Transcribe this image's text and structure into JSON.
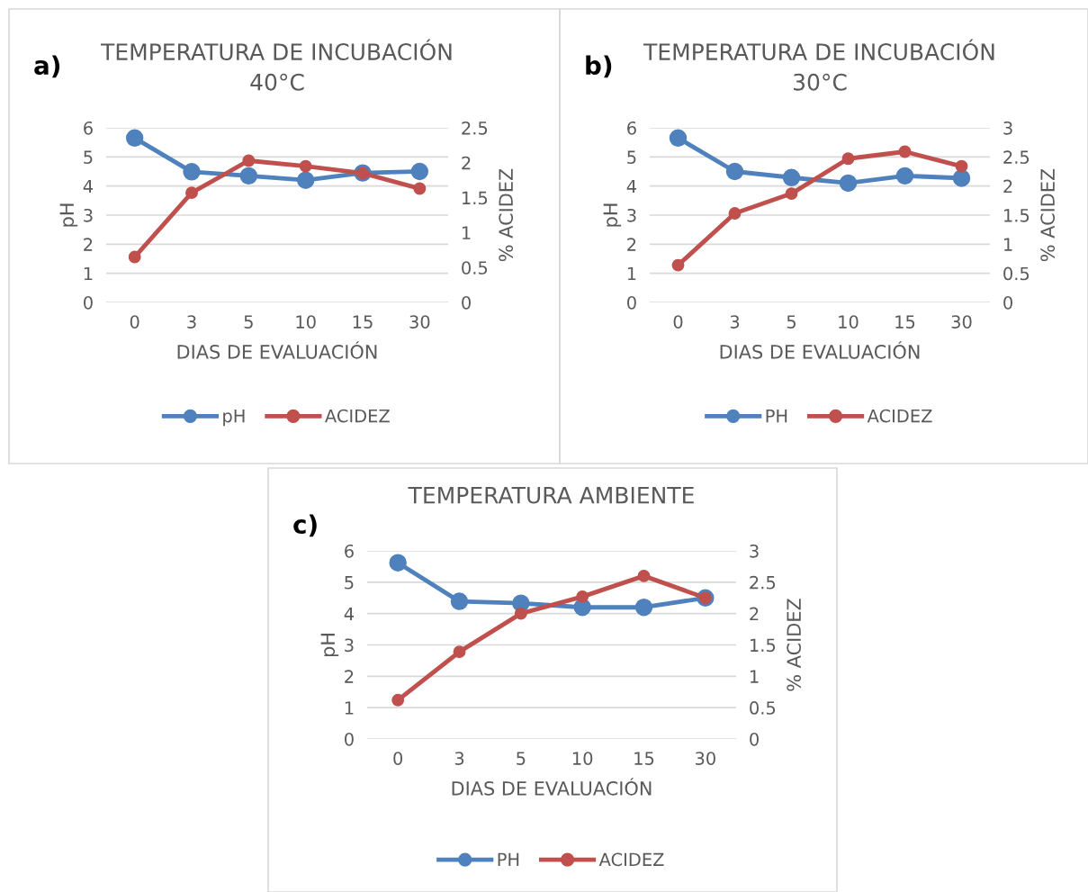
{
  "chart_data": [
    {
      "type": "line",
      "title": "TEMPERATURA DE INCUBACIÓN\n40°C",
      "annotations": [
        "a)"
      ],
      "xlabel": "DIAS DE EVALUACIÓN",
      "ylabel": "pH",
      "y2label": "% ACIDEZ",
      "categories": [
        "0",
        "3",
        "5",
        "10",
        "15",
        "30"
      ],
      "ylim": [
        0,
        6
      ],
      "yticks": [
        0,
        1,
        2,
        3,
        4,
        5,
        6
      ],
      "y2lim": [
        0,
        2.5
      ],
      "y2ticks": [
        0,
        0.5,
        1,
        1.5,
        2,
        2.5
      ],
      "grid": "y",
      "legend": "bottom",
      "marker": "circle",
      "series": [
        {
          "name": "pH",
          "color": "#4f81bd",
          "values": [
            5.65,
            4.49,
            4.35,
            4.2,
            4.45,
            4.5
          ]
        },
        {
          "name": "ACIDEZ",
          "color": "#c0504d",
          "axis": "y2",
          "values": [
            0.65,
            1.57,
            2.03,
            1.95,
            1.85,
            1.63
          ]
        }
      ]
    },
    {
      "type": "line",
      "title": "TEMPERATURA DE INCUBACIÓN\n30°C",
      "annotations": [
        "b)"
      ],
      "xlabel": "DIAS DE EVALUACIÓN",
      "ylabel": "pH",
      "y2label": "% ACIDEZ",
      "categories": [
        "0",
        "3",
        "5",
        "10",
        "15",
        "30"
      ],
      "ylim": [
        0,
        6
      ],
      "yticks": [
        0,
        1,
        2,
        3,
        4,
        5,
        6
      ],
      "y2lim": [
        0,
        3
      ],
      "y2ticks": [
        0,
        0.5,
        1,
        1.5,
        2,
        2.5,
        3
      ],
      "grid": "y",
      "legend": "bottom",
      "marker": "circle",
      "series": [
        {
          "name": "PH",
          "color": "#4f81bd",
          "values": [
            5.65,
            4.5,
            4.29,
            4.1,
            4.35,
            4.27
          ]
        },
        {
          "name": "ACIDEZ",
          "color": "#c0504d",
          "axis": "y2",
          "values": [
            0.64,
            1.53,
            1.87,
            2.47,
            2.59,
            2.34
          ]
        }
      ]
    },
    {
      "type": "line",
      "title": "TEMPERATURA AMBIENTE",
      "annotations": [
        "c)"
      ],
      "xlabel": "DIAS DE EVALUACIÓN",
      "ylabel": "pH",
      "y2label": "% ACIDEZ",
      "categories": [
        "0",
        "3",
        "5",
        "10",
        "15",
        "30"
      ],
      "ylim": [
        0,
        6
      ],
      "yticks": [
        0,
        1,
        2,
        3,
        4,
        5,
        6
      ],
      "y2lim": [
        0,
        3
      ],
      "y2ticks": [
        0,
        0.5,
        1,
        1.5,
        2,
        2.5,
        3
      ],
      "grid": "y",
      "legend": "bottom",
      "marker": "circle",
      "series": [
        {
          "name": "PH",
          "color": "#4f81bd",
          "values": [
            5.62,
            4.39,
            4.33,
            4.2,
            4.2,
            4.5
          ]
        },
        {
          "name": "ACIDEZ",
          "color": "#c0504d",
          "axis": "y2",
          "values": [
            0.62,
            1.39,
            2.0,
            2.27,
            2.6,
            2.25
          ]
        }
      ]
    }
  ]
}
